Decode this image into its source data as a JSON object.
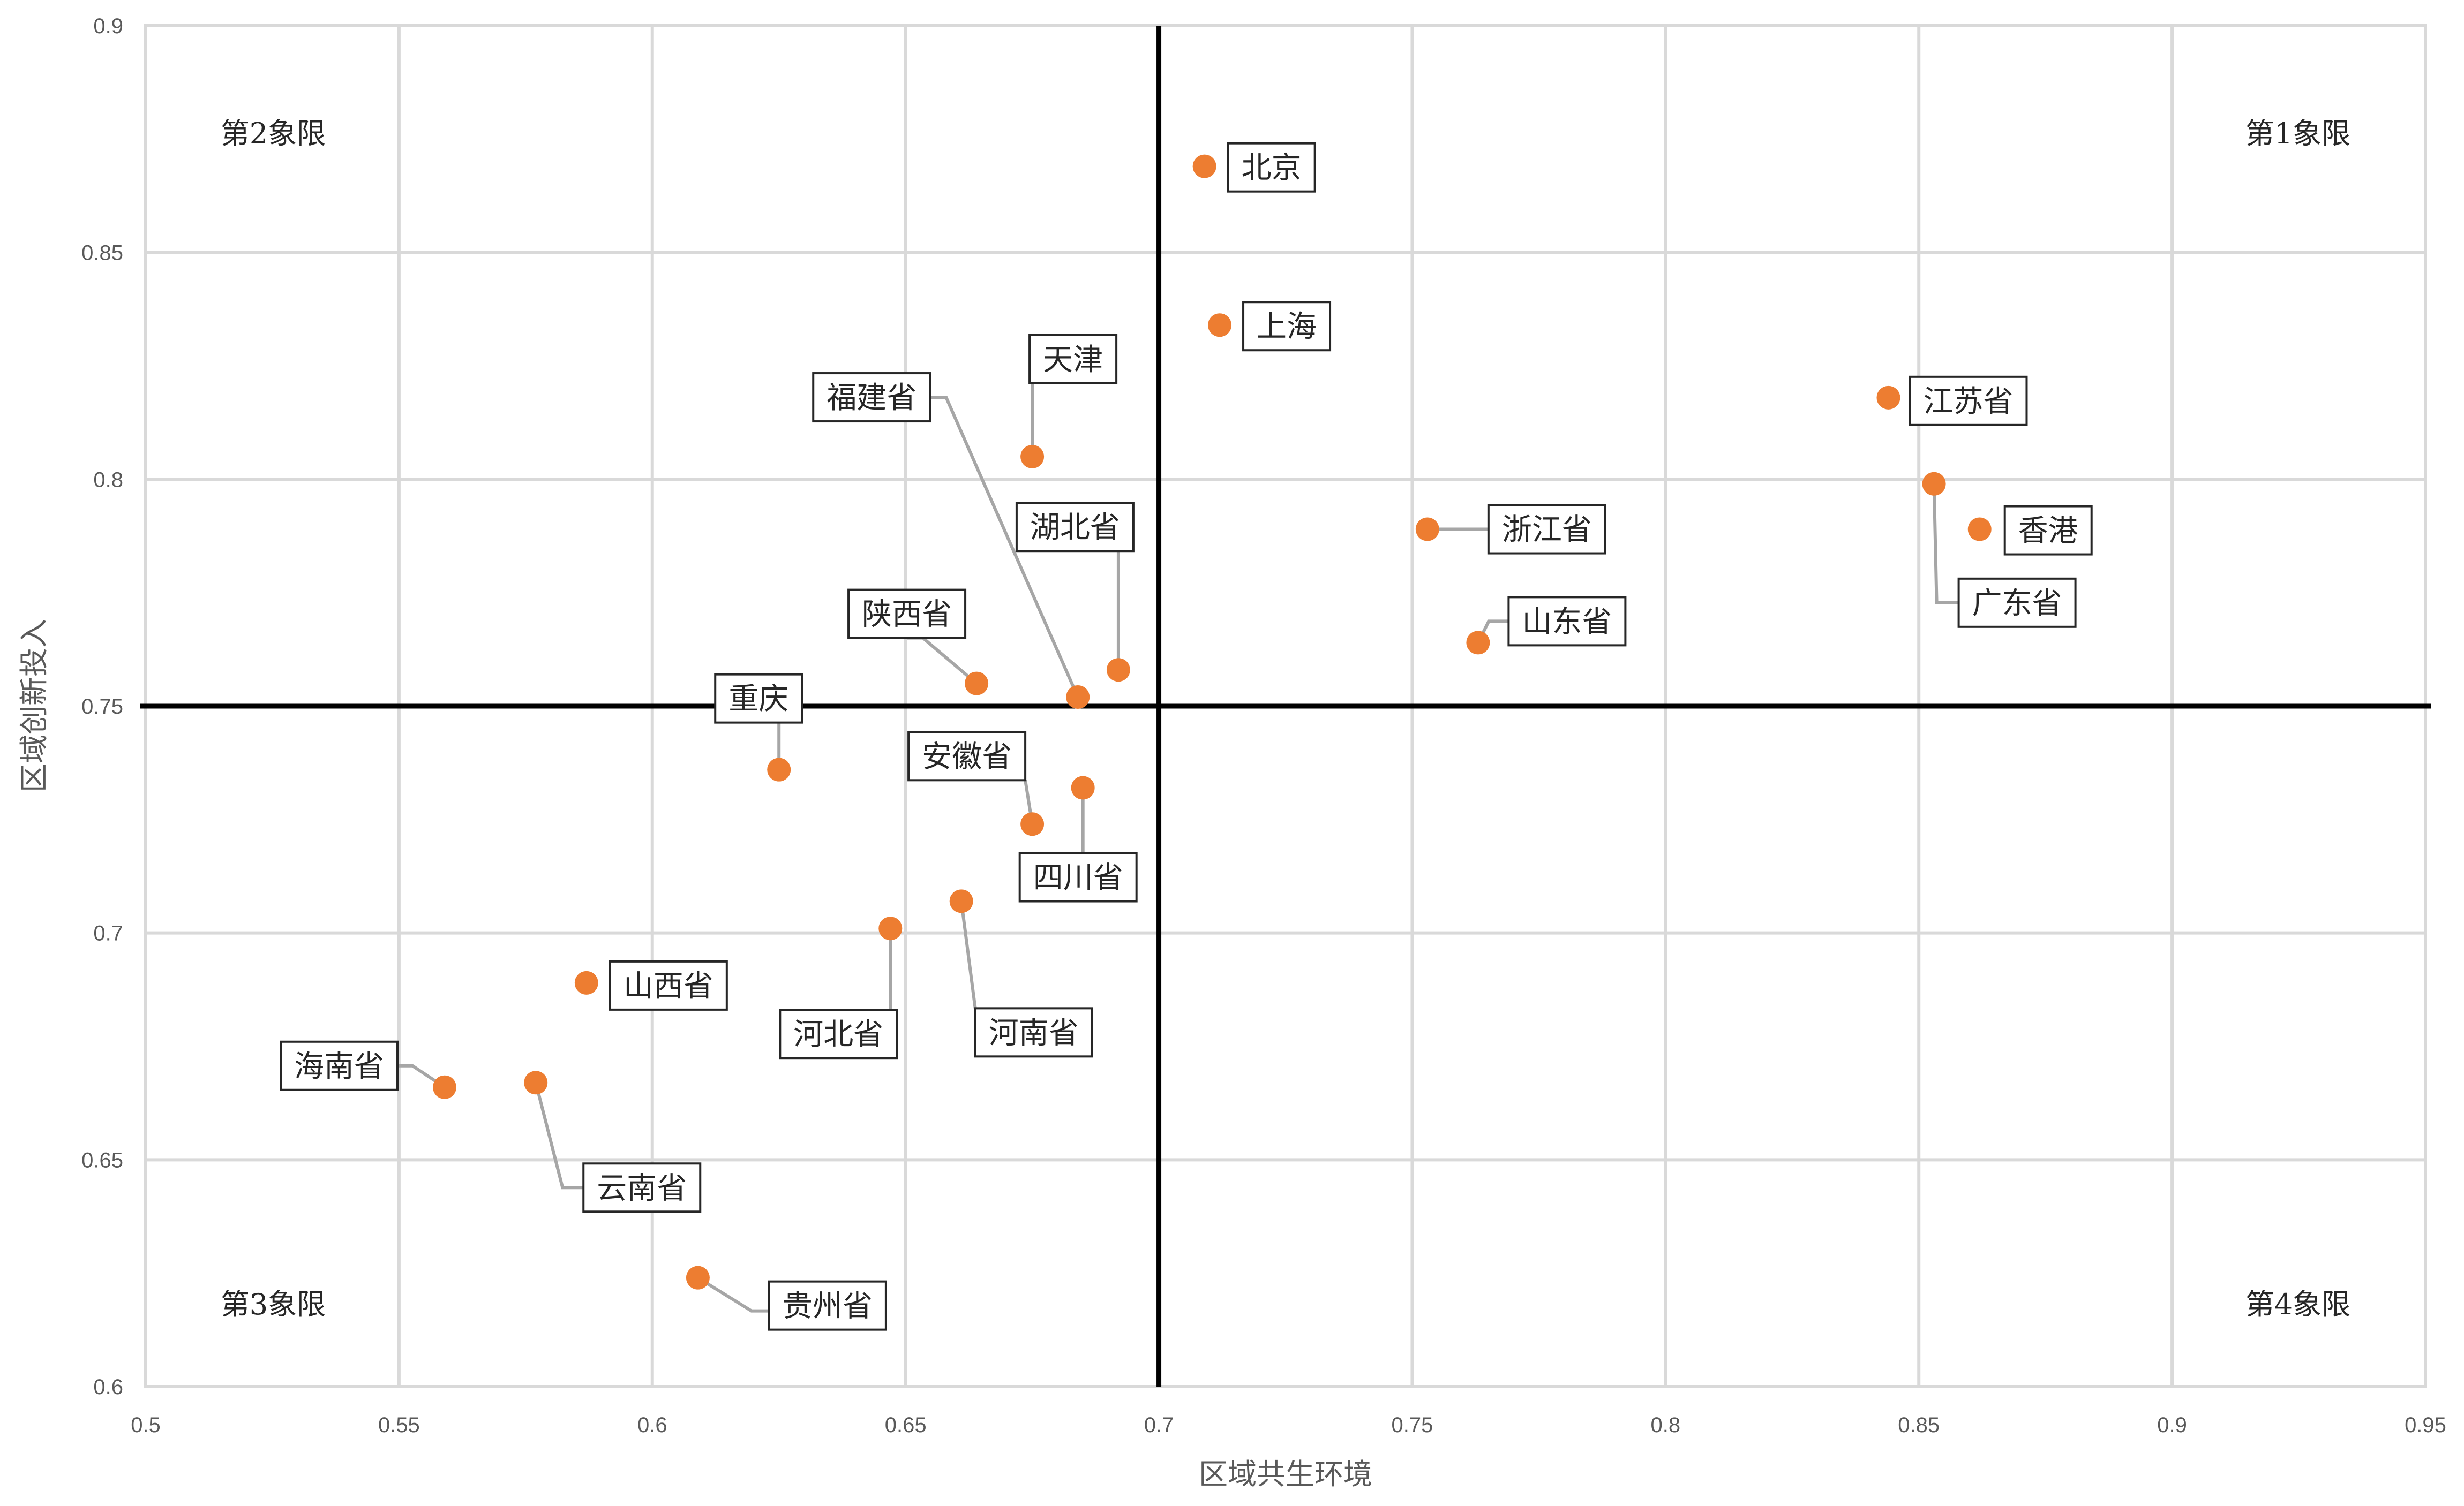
{
  "chart_data": {
    "type": "scatter",
    "xlabel": "区域共生环境",
    "ylabel": "区域创新投入",
    "xlim": [
      0.5,
      0.95
    ],
    "ylim": [
      0.6,
      0.9
    ],
    "x_ticks": [
      0.5,
      0.55,
      0.6,
      0.65,
      0.7,
      0.75,
      0.8,
      0.85,
      0.9,
      0.95
    ],
    "y_ticks": [
      0.6,
      0.65,
      0.7,
      0.75,
      0.8,
      0.85,
      0.9
    ],
    "x_tick_labels": [
      "0.5",
      "0.55",
      "0.6",
      "0.65",
      "0.7",
      "0.75",
      "0.8",
      "0.85",
      "0.9",
      "0.95"
    ],
    "y_tick_labels": [
      "0.6",
      "0.65",
      "0.7",
      "0.75",
      "0.8",
      "0.85",
      "0.9"
    ],
    "grid": true,
    "divider": {
      "x": 0.7,
      "y": 0.75,
      "color": "#000000"
    },
    "point_color": "#ed7d31",
    "quadrants": [
      {
        "label": "第1象限",
        "position": "top-right"
      },
      {
        "label": "第2象限",
        "position": "top-left"
      },
      {
        "label": "第3象限",
        "position": "bottom-left"
      },
      {
        "label": "第4象限",
        "position": "bottom-right"
      }
    ],
    "points": [
      {
        "name": "北京",
        "x": 0.709,
        "y": 0.869
      },
      {
        "name": "上海",
        "x": 0.712,
        "y": 0.834
      },
      {
        "name": "天津",
        "x": 0.675,
        "y": 0.805
      },
      {
        "name": "福建省",
        "x": 0.684,
        "y": 0.752
      },
      {
        "name": "湖北省",
        "x": 0.692,
        "y": 0.758
      },
      {
        "name": "陕西省",
        "x": 0.664,
        "y": 0.755
      },
      {
        "name": "重庆",
        "x": 0.625,
        "y": 0.736
      },
      {
        "name": "安徽省",
        "x": 0.675,
        "y": 0.724
      },
      {
        "name": "四川省",
        "x": 0.685,
        "y": 0.732
      },
      {
        "name": "河北省",
        "x": 0.647,
        "y": 0.701
      },
      {
        "name": "河南省",
        "x": 0.661,
        "y": 0.707
      },
      {
        "name": "山西省",
        "x": 0.587,
        "y": 0.689
      },
      {
        "name": "海南省",
        "x": 0.559,
        "y": 0.666
      },
      {
        "name": "云南省",
        "x": 0.577,
        "y": 0.667
      },
      {
        "name": "贵州省",
        "x": 0.609,
        "y": 0.624
      },
      {
        "name": "浙江省",
        "x": 0.753,
        "y": 0.789
      },
      {
        "name": "山东省",
        "x": 0.763,
        "y": 0.764
      },
      {
        "name": "江苏省",
        "x": 0.844,
        "y": 0.818
      },
      {
        "name": "广东省",
        "x": 0.853,
        "y": 0.799
      },
      {
        "name": "香港",
        "x": 0.862,
        "y": 0.789
      }
    ]
  }
}
